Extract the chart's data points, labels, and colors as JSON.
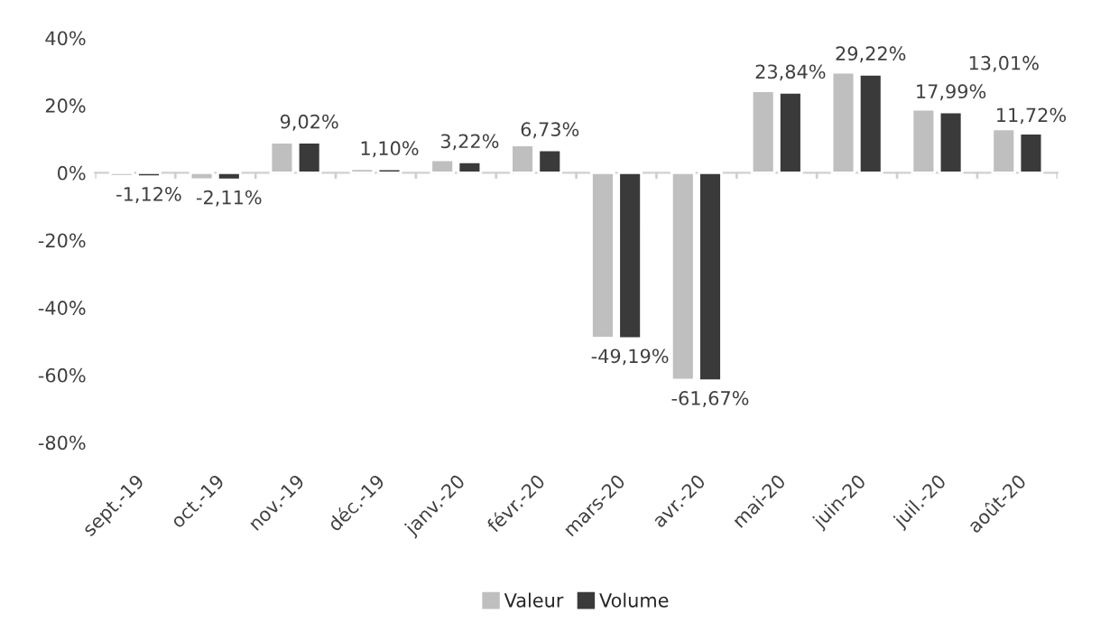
{
  "chart_data": {
    "type": "bar",
    "categories": [
      "sept.-19",
      "oct.-19",
      "nov.-19",
      "déc.-19",
      "janv.-20",
      "févr.-20",
      "mars-20",
      "avr.-20",
      "mai-20",
      "juin-20",
      "juil.-20",
      "août-20"
    ],
    "series": [
      {
        "name": "Valeur",
        "color": "#bfbfbf",
        "values": [
          -1.0,
          -2.0,
          9.0,
          1.2,
          3.8,
          8.2,
          -49.0,
          -61.5,
          24.3,
          29.8,
          18.8,
          13.01
        ],
        "value_labels": [
          null,
          null,
          null,
          null,
          null,
          null,
          null,
          null,
          null,
          null,
          null,
          "13,01%"
        ]
      },
      {
        "name": "Volume",
        "color": "#3a3a3a",
        "values": [
          -1.12,
          -2.11,
          9.02,
          1.1,
          3.22,
          6.73,
          -49.19,
          -61.67,
          23.84,
          29.22,
          17.99,
          11.72
        ],
        "value_labels": [
          "-1,12%",
          "-2,11%",
          "9,02%",
          "1,10%",
          "3,22%",
          "6,73%",
          "-49,19%",
          "-61,67%",
          "23,84%",
          "29,22%",
          "17,99%",
          "11,72%"
        ]
      }
    ],
    "ylim": [
      -80,
      40
    ],
    "yticks": [
      {
        "value": -80,
        "label": "-80%"
      },
      {
        "value": -60,
        "label": "-60%"
      },
      {
        "value": -40,
        "label": "-40%"
      },
      {
        "value": -20,
        "label": "-20%"
      },
      {
        "value": 0,
        "label": "0%"
      },
      {
        "value": 20,
        "label": "20%"
      },
      {
        "value": 40,
        "label": "40%"
      }
    ],
    "legend": "bottom"
  }
}
